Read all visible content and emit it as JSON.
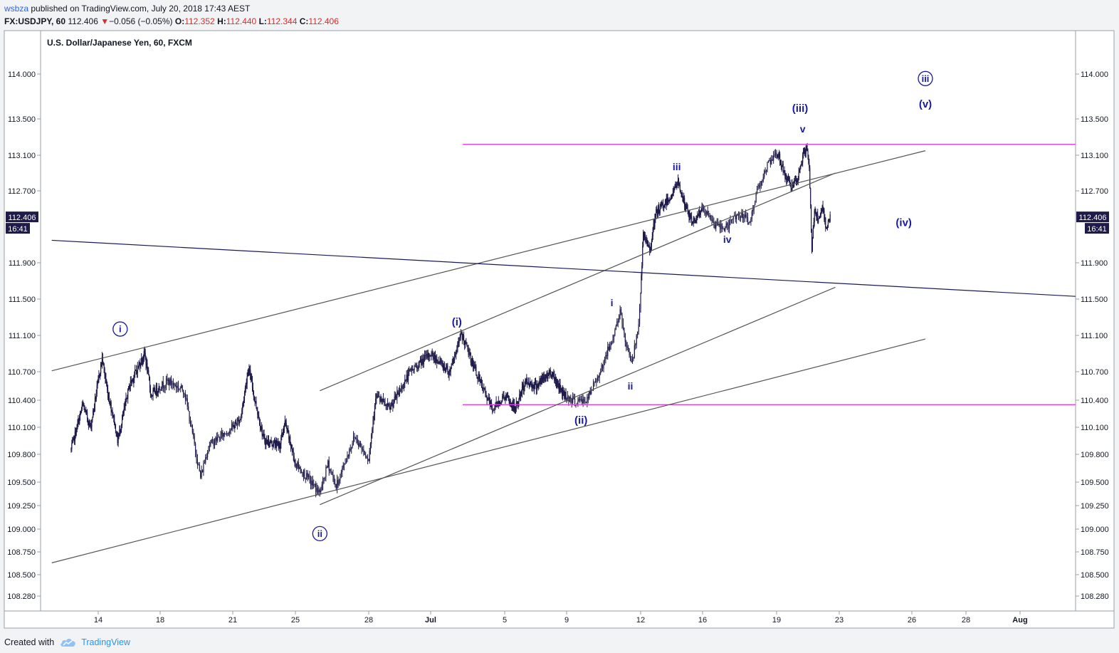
{
  "header": {
    "author": "wsbza",
    "published_text": "published on TradingView.com, July 20, 2018 17:43 AEST",
    "symbol": "FX:USDJPY, 60",
    "last": "112.406",
    "change": "−0.056 (−0.05%)",
    "o_label": "O:",
    "o_value": "112.352",
    "h_label": "H:",
    "h_value": "112.440",
    "l_label": "L:",
    "l_value": "112.344",
    "c_label": "C:",
    "c_value": "112.406"
  },
  "footer": {
    "created_with": "Created with",
    "brand": "TradingView"
  },
  "chart_data": {
    "type": "candlestick",
    "title": "U.S. Dollar/Japanese Yen, 60, FXCM",
    "y_ticks": [
      "114.000",
      "113.500",
      "113.100",
      "112.700",
      "111.900",
      "111.500",
      "111.100",
      "110.700",
      "110.400",
      "110.100",
      "109.800",
      "109.500",
      "109.250",
      "109.000",
      "108.750",
      "108.500",
      "108.280"
    ],
    "x_ticks": [
      "14",
      "18",
      "21",
      "25",
      "28",
      "Jul",
      "5",
      "9",
      "12",
      "16",
      "19",
      "23",
      "26",
      "28",
      "Aug"
    ],
    "price_label": "112.406",
    "time_label": "16:41",
    "colors": {
      "candle": "#1e1a4a",
      "wave_label": "#1a1a9c",
      "horizontal_level": "#e040e0",
      "trendline": "#555555",
      "dark_line": "#1a1a5a"
    },
    "horizontal_levels": [
      113.22,
      110.35
    ],
    "path": [
      [
        "Jun 12 06:00",
        109.85
      ],
      [
        "Jun 13 00:00",
        110.35
      ],
      [
        "Jun 13 12:00",
        110.1
      ],
      [
        "Jun 14 00:00",
        110.6
      ],
      [
        "Jun 14 06:00",
        110.85
      ],
      [
        "Jun 14 14:00",
        110.5
      ],
      [
        "Jun 15 00:00",
        110.2
      ],
      [
        "Jun 15 06:00",
        109.95
      ],
      [
        "Jun 16 00:00",
        110.55
      ],
      [
        "Jun 17 00:00",
        110.9
      ],
      [
        "Jun 17 10:00",
        110.45
      ],
      [
        "Jun 18 08:00",
        110.6
      ],
      [
        "Jun 19 00:00",
        110.5
      ],
      [
        "Jun 19 16:00",
        109.55
      ],
      [
        "Jun 20 00:00",
        109.9
      ],
      [
        "Jun 21 12:00",
        110.2
      ],
      [
        "Jun 22 00:00",
        110.75
      ],
      [
        "Jun 22 10:00",
        110.4
      ],
      [
        "Jun 23 00:00",
        109.95
      ],
      [
        "Jun 24 00:00",
        109.9
      ],
      [
        "Jun 24 08:00",
        110.15
      ],
      [
        "Jun 25 00:00",
        109.7
      ],
      [
        "Jun 26 00:00",
        109.38
      ],
      [
        "Jun 26 08:00",
        109.7
      ],
      [
        "Jun 26 16:00",
        109.45
      ],
      [
        "Jun 27 10:00",
        110.0
      ],
      [
        "Jun 28 00:00",
        109.75
      ],
      [
        "Jun 28 08:00",
        110.45
      ],
      [
        "Jun 29 00:00",
        110.3
      ],
      [
        "Jun 30 00:00",
        110.7
      ],
      [
        "Jul 1 00:00",
        110.9
      ],
      [
        "Jul 2 00:00",
        110.7
      ],
      [
        "Jul 2 16:00",
        111.12
      ],
      [
        "Jul 3 06:00",
        110.8
      ],
      [
        "Jul 3 18:00",
        110.55
      ],
      [
        "Jul 4 08:00",
        110.3
      ],
      [
        "Jul 5 00:00",
        110.45
      ],
      [
        "Jul 5 16:00",
        110.3
      ],
      [
        "Jul 6 08:00",
        110.6
      ],
      [
        "Jul 7 00:00",
        110.55
      ],
      [
        "Jul 8 00:00",
        110.7
      ],
      [
        "Jul 8 16:00",
        110.5
      ],
      [
        "Jul 9 08:00",
        110.38
      ],
      [
        "Jul 9 20:00",
        110.4
      ],
      [
        "Jul 10 10:00",
        110.75
      ],
      [
        "Jul 10 20:00",
        111.05
      ],
      [
        "Jul 11 04:00",
        111.35
      ],
      [
        "Jul 11 10:00",
        111.0
      ],
      [
        "Jul 11 16:00",
        110.8
      ],
      [
        "Jul 11 22:00",
        111.25
      ],
      [
        "Jul 12 04:00",
        112.2
      ],
      [
        "Jul 12 14:00",
        112.05
      ],
      [
        "Jul 13 00:00",
        112.45
      ],
      [
        "Jul 13 12:00",
        112.55
      ],
      [
        "Jul 14 00:00",
        112.65
      ],
      [
        "Jul 14 10:00",
        112.8
      ],
      [
        "Jul 14 20:00",
        112.55
      ],
      [
        "Jul 15 08:00",
        112.35
      ],
      [
        "Jul 16 00:00",
        112.5
      ],
      [
        "Jul 16 14:00",
        112.3
      ],
      [
        "Jul 17 00:00",
        112.3
      ],
      [
        "Jul 17 10:00",
        112.45
      ],
      [
        "Jul 17 22:00",
        112.35
      ],
      [
        "Jul 18 06:00",
        112.75
      ],
      [
        "Jul 18 16:00",
        113.0
      ],
      [
        "Jul 19 02:00",
        113.12
      ],
      [
        "Jul 19 14:00",
        112.85
      ],
      [
        "Jul 20 00:00",
        112.75
      ],
      [
        "Jul 20 08:00",
        112.8
      ],
      [
        "Jul 20 16:00",
        113.1
      ],
      [
        "Jul 20 22:00",
        113.18
      ],
      [
        "Jul 21 02:00",
        112.95
      ],
      [
        "Jul 21 06:00",
        112.05
      ],
      [
        "Jul 21 10:00",
        112.5
      ],
      [
        "Jul 21 16:00",
        112.35
      ],
      [
        "Jul 21 22:00",
        112.5
      ],
      [
        "Jul 22 04:00",
        112.3
      ],
      [
        "Jul 22 10:00",
        112.41
      ]
    ],
    "wave_labels": [
      {
        "text": "i",
        "style": "circled",
        "date": "Jun 15 10:00",
        "price": 111.17
      },
      {
        "text": "ii",
        "style": "circled",
        "date": "Jun 26 00:00",
        "price": 108.95
      },
      {
        "text": "iii",
        "style": "circled",
        "date": "Jul 26 12:00",
        "price": 113.95
      },
      {
        "text": "(i)",
        "style": "plain",
        "date": "Jul 2 10:00",
        "price": 111.25
      },
      {
        "text": "(ii)",
        "style": "plain",
        "date": "Jul 9 14:00",
        "price": 110.18
      },
      {
        "text": "(iii)",
        "style": "plain",
        "date": "Jul 20 12:00",
        "price": 113.62
      },
      {
        "text": "(iv)",
        "style": "plain",
        "date": "Jul 25 16:00",
        "price": 112.35
      },
      {
        "text": "(v)",
        "style": "plain",
        "date": "Jul 26 12:00",
        "price": 113.67
      },
      {
        "text": "i",
        "style": "small",
        "date": "Jul 10 20:00",
        "price": 111.46
      },
      {
        "text": "ii",
        "style": "small",
        "date": "Jul 11 14:00",
        "price": 110.55
      },
      {
        "text": "iii",
        "style": "small",
        "date": "Jul 14 08:00",
        "price": 112.97
      },
      {
        "text": "iv",
        "style": "small",
        "date": "Jul 17 00:00",
        "price": 112.16
      },
      {
        "text": "v",
        "style": "small",
        "date": "Jul 20 16:00",
        "price": 113.39
      }
    ]
  }
}
